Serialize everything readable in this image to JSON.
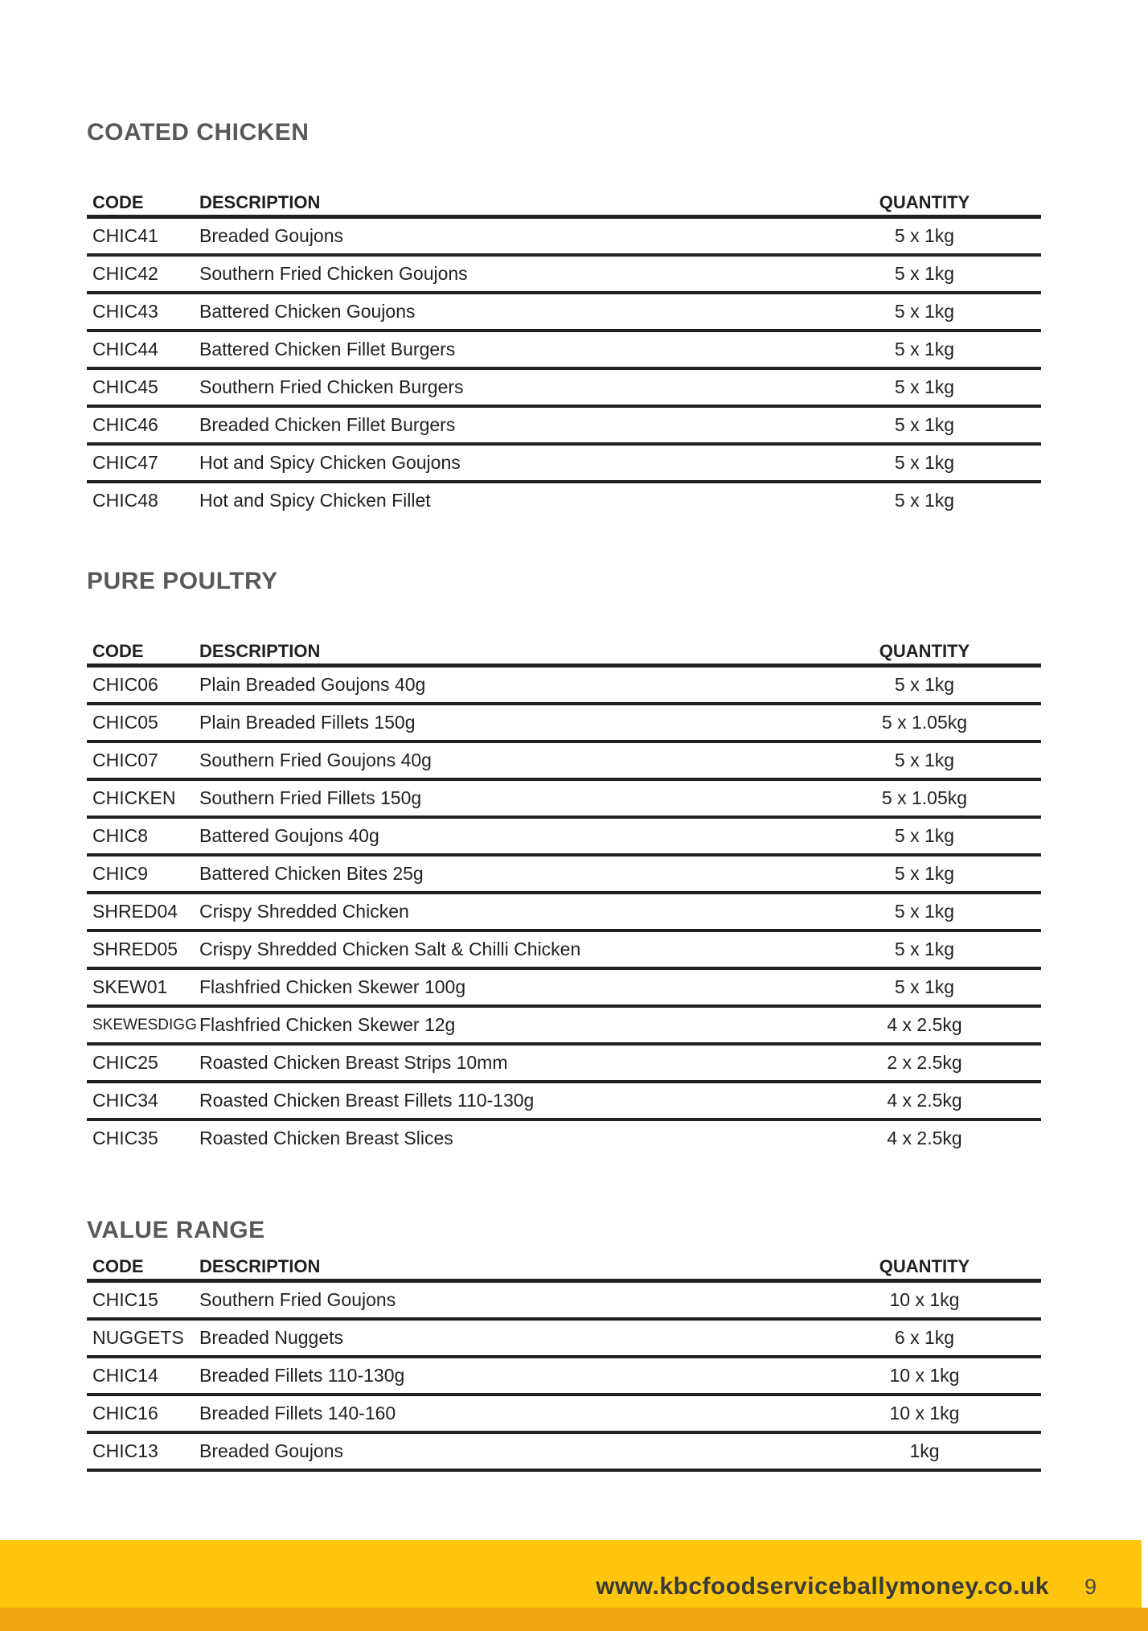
{
  "page": {
    "footer": {
      "url": "www.kbcfoodserviceballymoney.co.uk",
      "page_number": "9"
    },
    "colors": {
      "accent_yellow": "#FFC60D",
      "accent_amber": "#EFA50F",
      "heading_gray": "#58595B",
      "text_dark": "#231F20"
    }
  },
  "sections": [
    {
      "title": "COATED CHICKEN",
      "headers": [
        "CODE",
        "DESCRIPTION",
        "QUANTITY"
      ],
      "rows": [
        {
          "code": "CHIC41",
          "description": "Breaded Goujons",
          "quantity": "5 x 1kg"
        },
        {
          "code": "CHIC42",
          "description": "Southern Fried Chicken Goujons",
          "quantity": "5 x 1kg"
        },
        {
          "code": "CHIC43",
          "description": "Battered Chicken Goujons",
          "quantity": "5 x 1kg"
        },
        {
          "code": "CHIC44",
          "description": "Battered Chicken Fillet Burgers",
          "quantity": "5 x 1kg"
        },
        {
          "code": "CHIC45",
          "description": "Southern Fried Chicken Burgers",
          "quantity": "5 x 1kg"
        },
        {
          "code": "CHIC46",
          "description": "Breaded Chicken Fillet Burgers",
          "quantity": "5 x 1kg"
        },
        {
          "code": "CHIC47",
          "description": "Hot and Spicy Chicken Goujons",
          "quantity": "5 x 1kg"
        },
        {
          "code": "CHIC48",
          "description": "Hot and Spicy Chicken Fillet",
          "quantity": "5 x 1kg"
        }
      ]
    },
    {
      "title": "PURE POULTRY",
      "headers": [
        "CODE",
        "DESCRIPTION",
        "QUANTITY"
      ],
      "rows": [
        {
          "code": "CHIC06",
          "description": "Plain Breaded Goujons 40g",
          "quantity": "5 x 1kg"
        },
        {
          "code": "CHIC05",
          "description": "Plain Breaded Fillets 150g",
          "quantity": "5 x 1.05kg"
        },
        {
          "code": "CHIC07",
          "description": "Southern Fried Goujons 40g",
          "quantity": "5 x 1kg"
        },
        {
          "code": "CHICKEN",
          "description": "Southern Fried Fillets 150g",
          "quantity": "5 x 1.05kg"
        },
        {
          "code": "CHIC8",
          "description": "Battered Goujons 40g",
          "quantity": "5 x 1kg"
        },
        {
          "code": "CHIC9",
          "description": "Battered Chicken Bites 25g",
          "quantity": "5 x 1kg"
        },
        {
          "code": "SHRED04",
          "description": "Crispy Shredded Chicken",
          "quantity": "5 x 1kg"
        },
        {
          "code": "SHRED05",
          "description": "Crispy Shredded Chicken Salt & Chilli Chicken",
          "quantity": "5 x 1kg"
        },
        {
          "code": "SKEW01",
          "description": "Flashfried Chicken Skewer 100g",
          "quantity": "5 x 1kg"
        },
        {
          "code": "SKEWESDIGG",
          "description": "Flashfried Chicken Skewer 12g",
          "quantity": "4 x 2.5kg"
        },
        {
          "code": "CHIC25",
          "description": "Roasted Chicken Breast Strips 10mm",
          "quantity": "2 x 2.5kg"
        },
        {
          "code": "CHIC34",
          "description": "Roasted Chicken Breast Fillets 110-130g",
          "quantity": "4 x 2.5kg"
        },
        {
          "code": "CHIC35",
          "description": "Roasted Chicken Breast Slices",
          "quantity": "4 x 2.5kg"
        }
      ]
    },
    {
      "title": "VALUE RANGE",
      "headers": [
        "CODE",
        "DESCRIPTION",
        "QUANTITY"
      ],
      "rows": [
        {
          "code": "CHIC15",
          "description": "Southern Fried Goujons",
          "quantity": "10 x 1kg"
        },
        {
          "code": "NUGGETS",
          "description": "Breaded Nuggets",
          "quantity": "6 x 1kg"
        },
        {
          "code": "CHIC14",
          "description": "Breaded Fillets 110-130g",
          "quantity": "10 x 1kg"
        },
        {
          "code": "CHIC16",
          "description": "Breaded Fillets 140-160",
          "quantity": "10 x 1kg"
        },
        {
          "code": "CHIC13",
          "description": "Breaded Goujons",
          "quantity": "1kg"
        }
      ]
    }
  ]
}
